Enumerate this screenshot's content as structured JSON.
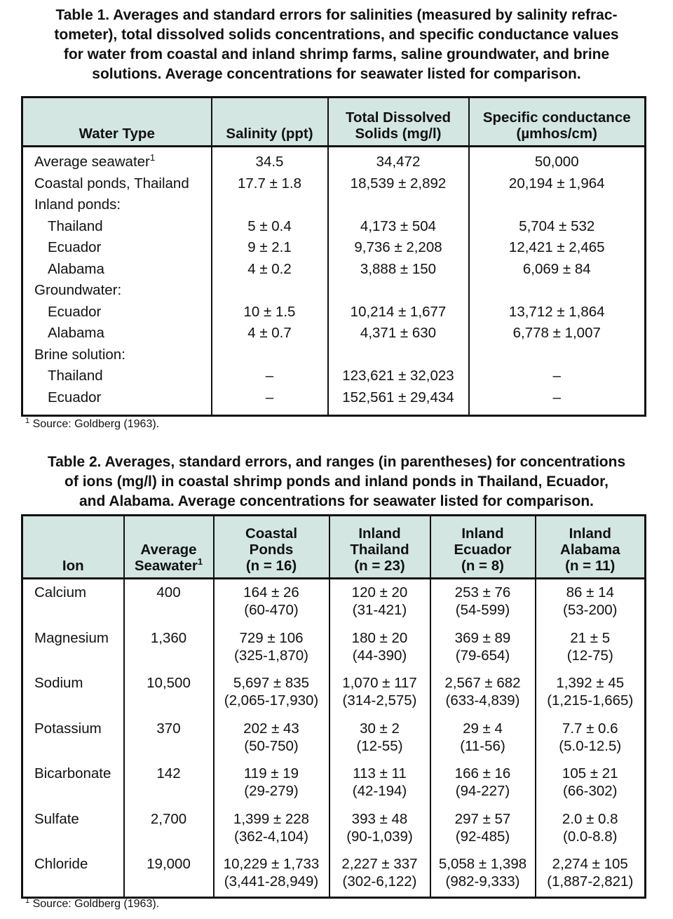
{
  "table1": {
    "caption_lines": [
      "Table 1. Averages and standard errors for salinities (measured by salinity refrac-",
      "tometer), total dissolved solids concentrations, and specific conductance values",
      "for water from coastal and inland shrimp farms, saline groundwater, and brine",
      "solutions. Average concentrations for seawater listed for comparison."
    ],
    "headers": [
      [
        "Water Type"
      ],
      [
        "Salinity (ppt)"
      ],
      [
        "Total Dissolved",
        "Solids (mg/l)"
      ],
      [
        "Specific conductance",
        "(µmhos/cm)"
      ]
    ],
    "body": [
      {
        "label": "Average seawater",
        "footnote_mark": "1",
        "values": [
          "34.5",
          "34,472",
          "50,000"
        ]
      },
      {
        "label": "Coastal ponds, Thailand",
        "values": [
          "17.7 ± 1.8",
          "18,539 ± 2,892",
          "20,194 ± 1,964"
        ]
      },
      {
        "group": "Inland ponds:",
        "rows": [
          {
            "label": "Thailand",
            "values": [
              "5 ± 0.4",
              "4,173 ± 504",
              "5,704 ± 532"
            ]
          },
          {
            "label": "Ecuador",
            "values": [
              "9 ± 2.1",
              "9,736 ± 2,208",
              "12,421 ± 2,465"
            ]
          },
          {
            "label": "Alabama",
            "values": [
              "4 ± 0.2",
              "3,888 ± 150",
              "6,069 ± 84"
            ]
          }
        ]
      },
      {
        "group": "Groundwater:",
        "rows": [
          {
            "label": "Ecuador",
            "values": [
              "10 ± 1.5",
              "10,214 ± 1,677",
              "13,712 ± 1,864"
            ]
          },
          {
            "label": "Alabama",
            "values": [
              "4 ± 0.7",
              "4,371 ± 630",
              "6,778 ± 1,007"
            ]
          }
        ]
      },
      {
        "group": "Brine solution:",
        "rows": [
          {
            "label": "Thailand",
            "values": [
              "–",
              "123,621 ± 32,023",
              "–"
            ]
          },
          {
            "label": "Ecuador",
            "values": [
              "–",
              "152,561 ± 29,434",
              "–"
            ]
          }
        ]
      }
    ],
    "footnote_mark": "1",
    "footnote": "Source: Goldberg (1963)."
  },
  "table2": {
    "caption_lines": [
      "Table 2. Averages, standard errors, and ranges (in parentheses) for concentrations",
      "of ions (mg/l) in coastal shrimp ponds and inland ponds in Thailand, Ecuador,",
      "and Alabama. Average concentrations for seawater listed for comparison."
    ],
    "headers": [
      [
        "Ion"
      ],
      [
        "Average",
        "Seawater"
      ],
      [
        "Coastal",
        "Ponds",
        "(n = 16)"
      ],
      [
        "Inland",
        "Thailand",
        "(n = 23)"
      ],
      [
        "Inland",
        "Ecuador",
        "(n = 8)"
      ],
      [
        "Inland",
        "Alabama",
        "(n = 11)"
      ]
    ],
    "header_footnote_mark": "1",
    "rows": [
      {
        "ion": "Calcium",
        "seawater": "400",
        "cells": [
          [
            "164 ± 26",
            "(60-470)"
          ],
          [
            "120 ± 20",
            "(31-421)"
          ],
          [
            "253 ± 76",
            "(54-599)"
          ],
          [
            "86 ± 14",
            "(53-200)"
          ]
        ]
      },
      {
        "ion": "Magnesium",
        "seawater": "1,360",
        "cells": [
          [
            "729 ± 106",
            "(325-1,870)"
          ],
          [
            "180 ± 20",
            "(44-390)"
          ],
          [
            "369 ± 89",
            "(79-654)"
          ],
          [
            "21 ± 5",
            "(12-75)"
          ]
        ]
      },
      {
        "ion": "Sodium",
        "seawater": "10,500",
        "cells": [
          [
            "5,697 ± 835",
            "(2,065-17,930)"
          ],
          [
            "1,070 ± 117",
            "(314-2,575)"
          ],
          [
            "2,567 ± 682",
            "(633-4,839)"
          ],
          [
            "1,392 ± 45",
            "(1,215-1,665)"
          ]
        ]
      },
      {
        "ion": "Potassium",
        "seawater": "370",
        "cells": [
          [
            "202 ± 43",
            "(50-750)"
          ],
          [
            "30 ± 2",
            "(12-55)"
          ],
          [
            "29 ± 4",
            "(11-56)"
          ],
          [
            "7.7 ± 0.6",
            "(5.0-12.5)"
          ]
        ]
      },
      {
        "ion": "Bicarbonate",
        "seawater": "142",
        "cells": [
          [
            "119 ± 19",
            "(29-279)"
          ],
          [
            "113 ± 11",
            "(42-194)"
          ],
          [
            "166 ± 16",
            "(94-227)"
          ],
          [
            "105 ± 21",
            "(66-302)"
          ]
        ]
      },
      {
        "ion": "Sulfate",
        "seawater": "2,700",
        "cells": [
          [
            "1,399 ± 228",
            "(362-4,104)"
          ],
          [
            "393 ± 48",
            "(90-1,039)"
          ],
          [
            "297 ± 57",
            "(92-485)"
          ],
          [
            "2.0 ± 0.8",
            "(0.0-8.8)"
          ]
        ]
      },
      {
        "ion": "Chloride",
        "seawater": "19,000",
        "cells": [
          [
            "10,229 ± 1,733",
            "(3,441-28,949)"
          ],
          [
            "2,227 ± 337",
            "(302-6,122)"
          ],
          [
            "5,058 ± 1,398",
            "(982-9,333)"
          ],
          [
            "2,274 ± 105",
            "(1,887-2,821)"
          ]
        ]
      }
    ],
    "footnote_mark": "1",
    "footnote": "Source: Goldberg (1963)."
  }
}
